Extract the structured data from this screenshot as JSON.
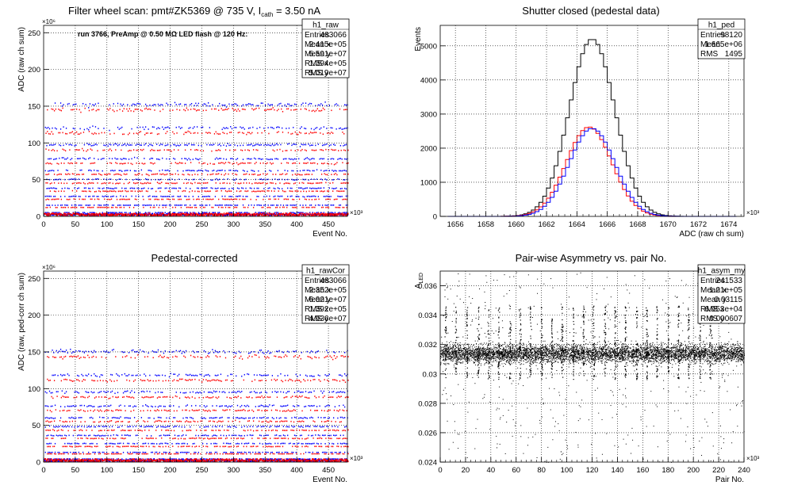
{
  "canvas_background": "#ffffff",
  "colors": {
    "axis": "#000000",
    "grid": "#000000",
    "red": "#ff0000",
    "blue": "#0000ff",
    "black": "#000000"
  },
  "chart_data": [
    {
      "id": "h1_raw",
      "type": "scatter",
      "title": "Filter wheel scan: pmt#ZK5369 @   735 V, I",
      "title_sub": "cath",
      "title_tail": " = 3.50 nA",
      "xlabel": "Event No.",
      "ylabel": "ADC (raw ch sum)",
      "x_exponent": "×10³",
      "y_exponent": "×10⁶",
      "xlim": [
        0,
        480
      ],
      "ylim": [
        0,
        260
      ],
      "xticks": [
        0,
        50,
        100,
        150,
        200,
        250,
        300,
        350,
        400,
        450
      ],
      "yticks": [
        0,
        50,
        100,
        150,
        200,
        250
      ],
      "grid": true,
      "annotation": "run 3766, PreAmp @ 0.50 MΩ LED flash @  120 Hz:",
      "stats": {
        "name": "h1_raw",
        "rows": [
          {
            "label": "Entries",
            "value": "483066"
          },
          {
            "label": "Mean x",
            "value": "2.415e+05"
          },
          {
            "label": "Mean y",
            "value": "5.591e+07"
          },
          {
            "label": "RMS x",
            "value": "1.394e+05"
          },
          {
            "label": "RMS y",
            "value": "5.019e+07"
          }
        ]
      },
      "series": [
        {
          "color": "#0000ff",
          "levels": [
            152,
            120,
            97,
            78,
            62,
            50,
            38,
            27,
            15,
            5,
            2
          ]
        },
        {
          "color": "#ff0000",
          "levels": [
            145,
            113,
            90,
            72,
            57,
            45,
            34,
            23,
            12,
            3,
            1
          ]
        }
      ],
      "step_period": 16
    },
    {
      "id": "h1_ped",
      "type": "step",
      "title": "Shutter closed (pedestal data)",
      "xlabel": "ADC (raw ch sum)",
      "ylabel": "Events",
      "x_exponent": "×10³",
      "xlim": [
        1655,
        1675
      ],
      "ylim": [
        0,
        5600
      ],
      "xticks": [
        1656,
        1658,
        1660,
        1662,
        1664,
        1666,
        1668,
        1670,
        1672,
        1674
      ],
      "yticks": [
        0,
        1000,
        2000,
        3000,
        4000,
        5000
      ],
      "grid": true,
      "stats": {
        "name": "h1_ped",
        "rows": [
          {
            "label": "Entries",
            "value": "98120"
          },
          {
            "label": "Mean",
            "value": "1.665e+06"
          },
          {
            "label": "RMS",
            "value": "1495"
          }
        ]
      },
      "series": [
        {
          "color": "#000000",
          "mean": 1665.0,
          "sigma": 1.5,
          "peak": 5200
        },
        {
          "color": "#ff0000",
          "mean": 1664.8,
          "sigma": 1.5,
          "peak": 2620
        },
        {
          "color": "#0000ff",
          "mean": 1665.0,
          "sigma": 1.5,
          "peak": 2580
        }
      ]
    },
    {
      "id": "h1_rawCor",
      "type": "scatter",
      "title": "Pedestal-corrected",
      "xlabel": "Event No.",
      "ylabel": "ADC (raw, ped-corr ch sum)",
      "x_exponent": "×10³",
      "y_exponent": "×10⁶",
      "xlim": [
        0,
        480
      ],
      "ylim": [
        0,
        260
      ],
      "xticks": [
        0,
        50,
        100,
        150,
        200,
        250,
        300,
        350,
        400,
        450
      ],
      "yticks": [
        0,
        50,
        100,
        150,
        200,
        250
      ],
      "grid": true,
      "stats": {
        "name": "h1_rawCor",
        "rows": [
          {
            "label": "Entries",
            "value": "483066"
          },
          {
            "label": "Mean x",
            "value": "2.352e+05"
          },
          {
            "label": "Mean y",
            "value": "6.021e+07"
          },
          {
            "label": "RMS x",
            "value": "1.392e+05"
          },
          {
            "label": "RMS y",
            "value": "4.936e+07"
          }
        ]
      },
      "series": [
        {
          "color": "#0000ff",
          "levels": [
            150,
            118,
            95,
            76,
            60,
            48,
            36,
            25,
            13,
            4,
            1
          ]
        },
        {
          "color": "#ff0000",
          "levels": [
            143,
            111,
            88,
            70,
            55,
            43,
            32,
            21,
            11,
            2,
            0.5
          ]
        }
      ],
      "step_period": 16
    },
    {
      "id": "h1_asym_my",
      "type": "scatter",
      "title": "Pair-wise Asymmetry vs. pair No.",
      "xlabel": "Pair No.",
      "ylabel": "A",
      "ylabel_sub": "LED",
      "x_exponent": "×10³",
      "xlim": [
        0,
        240
      ],
      "ylim": [
        0.024,
        0.037
      ],
      "xticks": [
        0,
        20,
        40,
        60,
        80,
        100,
        120,
        140,
        160,
        180,
        200,
        220,
        240
      ],
      "yticks": [
        0.024,
        0.026,
        0.028,
        0.03,
        0.032,
        0.034,
        0.036
      ],
      "ytick_labels": [
        "0.024",
        "0.026",
        "0.028",
        "0.03",
        "0.032",
        "0.034",
        "0.036"
      ],
      "grid": true,
      "stats": {
        "name": "h1_asym_my",
        "rows": [
          {
            "label": "Entries",
            "value": "241533"
          },
          {
            "label": "Mean x",
            "value": "1.21e+05"
          },
          {
            "label": "Mean y",
            "value": "0.03115"
          },
          {
            "label": "RMS x",
            "value": "6.953e+04"
          },
          {
            "label": "RMS y",
            "value": "0.000607"
          }
        ]
      },
      "band": {
        "center": 0.0314,
        "halfwidth": 0.0004
      },
      "spikes_x": [
        4,
        12,
        21,
        30,
        38,
        46,
        55,
        63,
        71,
        80,
        88,
        96,
        105,
        113,
        121,
        130,
        138,
        146,
        155,
        163,
        171,
        180,
        188,
        196,
        205,
        213
      ]
    }
  ]
}
